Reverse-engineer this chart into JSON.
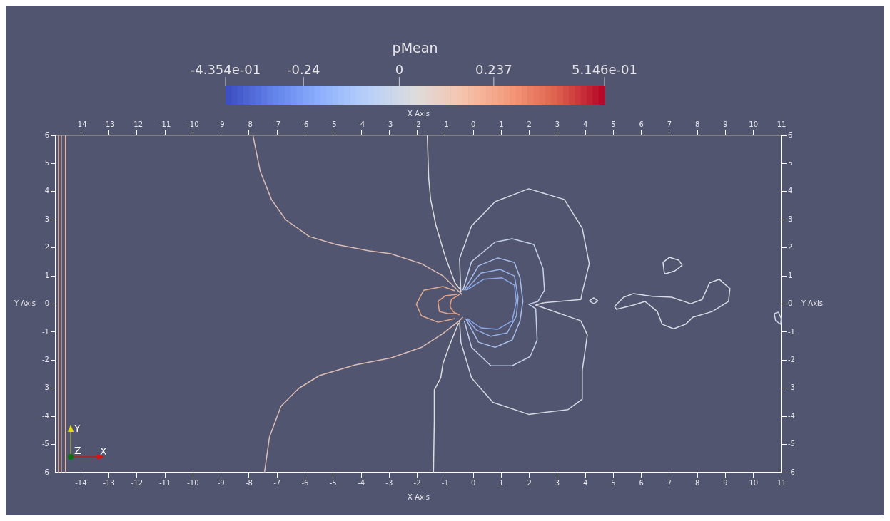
{
  "chart_data": {
    "type": "line",
    "xlabel": "X Axis",
    "x2label": "X Axis",
    "ylabel": "Y Axis",
    "y2label": "Y Axis",
    "clabel": "pMean",
    "clim": [
      -0.4354,
      0.5146
    ],
    "cticks": [
      {
        "value": -0.4354,
        "label": "-4.354e-01"
      },
      -0.24,
      0,
      0.237,
      {
        "value": 0.5146,
        "label": "5.146e-01"
      }
    ],
    "xlim": [
      -14.9,
      11
    ],
    "x2lim": [
      -14.9,
      11
    ],
    "ylim": [
      -6,
      6
    ],
    "y2lim": [
      -6,
      6
    ],
    "xticks": [
      -14,
      -13,
      -12,
      -11,
      -10,
      -9,
      -8,
      -7,
      -6,
      -5,
      -4,
      -3,
      -2,
      -1,
      0,
      1,
      2,
      3,
      4,
      5,
      6,
      7,
      8,
      9,
      10,
      11
    ],
    "x2ticks": [
      -14,
      -13,
      -12,
      -11,
      -10,
      -9,
      -8,
      -7,
      -6,
      -5,
      -4,
      -3,
      -2,
      -1,
      0,
      1,
      2,
      3,
      4,
      5,
      6,
      7,
      8,
      9,
      10,
      11
    ],
    "yticks": [
      -6,
      -5,
      -4,
      -3,
      -2,
      -1,
      0,
      1,
      2,
      3,
      4,
      5,
      6
    ],
    "y2ticks": [
      -6,
      -5,
      -4,
      -3,
      -2,
      -1,
      0,
      1,
      2,
      3,
      4,
      5,
      6
    ],
    "legend": false,
    "marker": "none",
    "line_style": "solid",
    "annotations": [
      "X",
      "Y",
      "Z"
    ],
    "series": [
      {
        "color": "#e8b4a0",
        "x": [
          -14.8,
          -14.8
        ],
        "values": [
          -6,
          6
        ]
      },
      {
        "color": "#e8b4a0",
        "x": [
          -14.7,
          -14.7
        ],
        "values": [
          -6,
          6
        ]
      },
      {
        "color": "#e8b4a0",
        "x": [
          -14.55,
          -14.55
        ],
        "values": [
          -6,
          6
        ]
      },
      {
        "color": "#dbbdb5",
        "x": [
          -7.86,
          -7.6,
          -7.2,
          -6.69,
          -5.85,
          -4.9,
          -3.71,
          -2.94,
          -1.84,
          -1.08,
          -0.57,
          -0.4
        ],
        "values": [
          6,
          4.72,
          3.72,
          3.0,
          2.4,
          2.12,
          1.89,
          1.79,
          1.43,
          1.0,
          0.5,
          0.34
        ]
      },
      {
        "color": "#dbbdb5",
        "x": [
          -7.45,
          -7.27,
          -6.86,
          -6.22,
          -5.49,
          -4.21,
          -2.94,
          -1.84,
          -1.08,
          -0.5,
          -0.37
        ],
        "values": [
          -6,
          -4.73,
          -3.64,
          -3.0,
          -2.55,
          -2.17,
          -1.92,
          -1.54,
          -1.05,
          -0.6,
          -0.47
        ]
      },
      {
        "color": "#dcdcdc",
        "x": [
          -1.64,
          -1.59,
          -1.52,
          -1.33,
          -1.0,
          -0.65,
          -0.45
        ],
        "values": [
          6,
          4.48,
          3.72,
          2.79,
          1.69,
          0.75,
          0.5
        ]
      },
      {
        "color": "#dcdcdc",
        "x": [
          -1.42,
          -1.39,
          -1.39,
          -1.16,
          -1.08,
          -0.83,
          -0.52
        ],
        "values": [
          -6,
          -4.15,
          -3.06,
          -2.63,
          -2.12,
          -1.43,
          -0.67
        ]
      },
      {
        "color": "#d6d8e2",
        "x": [
          -0.44,
          -0.49,
          -0.06,
          0.78,
          1.98,
          3.25,
          3.89,
          4.14,
          3.89,
          3.84,
          2.49,
          2.23,
          2.61,
          3.84,
          4.07,
          3.89,
          3.89,
          3.38,
          1.98,
          0.7,
          -0.06,
          -0.44,
          -0.49
        ],
        "values": [
          0.42,
          1.61,
          2.78,
          3.64,
          4.1,
          3.72,
          2.7,
          1.43,
          0.42,
          0.16,
          0.04,
          -0.04,
          -0.17,
          -0.6,
          -1.1,
          -2.37,
          -3.39,
          -3.76,
          -3.93,
          -3.5,
          -2.63,
          -1.36,
          -0.6
        ]
      },
      {
        "color": "#c4d0ec",
        "x": [
          -0.37,
          -0.06,
          0.78,
          1.39,
          2.16,
          2.49,
          2.54,
          2.31,
          1.98,
          2.23,
          2.28,
          2.03,
          1.39,
          0.63,
          -0.06,
          -0.32
        ],
        "values": [
          0.49,
          1.51,
          2.2,
          2.32,
          2.12,
          1.26,
          0.49,
          0.09,
          -0.01,
          -0.17,
          -1.28,
          -1.87,
          -2.2,
          -2.2,
          -1.54,
          -0.6
        ]
      },
      {
        "color": "#a7bdea",
        "x": [
          -0.32,
          0.19,
          0.88,
          1.47,
          1.67,
          1.77,
          1.67,
          1.39,
          0.78,
          0.19,
          -0.27
        ],
        "values": [
          0.49,
          1.36,
          1.64,
          1.48,
          0.93,
          0.09,
          -0.6,
          -1.28,
          -1.54,
          -1.36,
          -0.52
        ]
      },
      {
        "color": "#97b0ea",
        "x": [
          -0.27,
          0.27,
          0.96,
          1.47,
          1.6,
          1.54,
          1.21,
          0.63,
          0.12,
          -0.24
        ],
        "values": [
          0.49,
          1.1,
          1.23,
          1.0,
          0.24,
          -0.42,
          -1.03,
          -1.15,
          -0.93,
          -0.52
        ]
      },
      {
        "color": "#8aa8ea",
        "x": [
          -0.24,
          0.37,
          1.03,
          1.47,
          1.54,
          1.39,
          0.88,
          0.27,
          -0.21
        ],
        "values": [
          0.49,
          0.88,
          0.93,
          0.67,
          0.09,
          -0.6,
          -0.9,
          -0.85,
          -0.52
        ]
      },
      {
        "color": "#e0aa90",
        "x": [
          -2.03,
          -1.77,
          -1.08,
          -0.65
        ],
        "values": [
          -0.01,
          0.49,
          0.62,
          0.47
        ]
      },
      {
        "color": "#e0aa90",
        "x": [
          -2.03,
          -1.85,
          -1.26,
          -0.65
        ],
        "values": [
          -0.01,
          -0.42,
          -0.65,
          -0.52
        ]
      },
      {
        "color": "#e6a386",
        "x": [
          -1.26,
          -1.0,
          -0.57
        ],
        "values": [
          0.09,
          0.29,
          0.34
        ]
      },
      {
        "color": "#e6a386",
        "x": [
          -1.26,
          -1.21,
          -0.9,
          -0.57
        ],
        "values": [
          0.09,
          -0.27,
          -0.34,
          -0.34
        ]
      },
      {
        "color": "#ea9c7c",
        "x": [
          -0.83,
          -0.78,
          -0.49
        ],
        "values": [
          -0.09,
          0.16,
          0.34
        ]
      },
      {
        "color": "#ea9c7c",
        "x": [
          -0.83,
          -0.7,
          -0.49
        ],
        "values": [
          -0.09,
          -0.29,
          -0.39
        ]
      },
      {
        "color": "#d2d4e0",
        "x": [
          4.14,
          4.3,
          4.45
        ],
        "values": [
          0.11,
          0.22,
          0.11
        ]
      },
      {
        "color": "#d1d3df",
        "x": [
          4.14,
          4.3,
          4.45
        ],
        "values": [
          0.11,
          0.01,
          0.11
        ]
      },
      {
        "color": "#dadce6",
        "x": [
          6.77,
          7.0,
          7.33,
          7.46
        ],
        "values": [
          1.48,
          1.66,
          1.56,
          1.38
        ]
      },
      {
        "color": "#dbdde7",
        "x": [
          6.77,
          6.82,
          6.87,
          7.2,
          7.46
        ],
        "values": [
          1.48,
          1.1,
          1.08,
          1.18,
          1.38
        ]
      },
      {
        "color": "#d8dae4",
        "x": [
          5.04,
          5.37,
          5.72,
          6.39,
          7.08,
          7.76,
          8.17,
          8.43,
          8.78,
          9.16,
          9.11
        ],
        "values": [
          -0.09,
          0.24,
          0.37,
          0.27,
          0.24,
          0.01,
          0.16,
          0.75,
          0.88,
          0.55,
          0.09
        ]
      },
      {
        "color": "#d9dbe5",
        "x": [
          5.04,
          5.11,
          5.72,
          6.13,
          6.57,
          6.74,
          7.15,
          7.58,
          7.84,
          8.53,
          9.11
        ],
        "values": [
          -0.09,
          -0.19,
          -0.04,
          0.09,
          -0.27,
          -0.72,
          -0.88,
          -0.72,
          -0.47,
          -0.27,
          0.09
        ]
      },
      {
        "color": "#d3d5e1",
        "x": [
          10.74,
          10.89,
          10.99
        ],
        "values": [
          -0.34,
          -0.29,
          -0.52
        ]
      },
      {
        "color": "#d4d6e2",
        "x": [
          10.74,
          10.79,
          10.97,
          10.99
        ],
        "values": [
          -0.34,
          -0.6,
          -0.72,
          -0.52
        ]
      }
    ]
  }
}
